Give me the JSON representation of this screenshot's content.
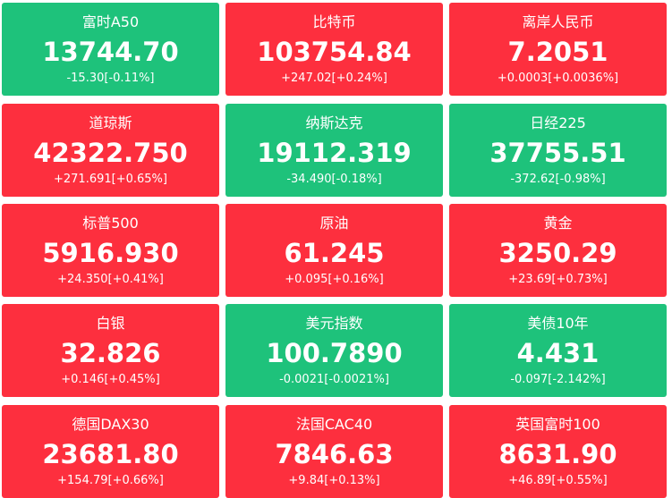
{
  "tiles": [
    {
      "name": "富时A50",
      "price": "13744.70",
      "change": "-15.30[-0.11%]",
      "color": "#1ec27b"
    },
    {
      "name": "比特币",
      "price": "103754.84",
      "change": "+247.02[+0.24%]",
      "color": "#fd2f3e"
    },
    {
      "name": "离岸人民币",
      "price": "7.2051",
      "change": "+0.0003[+0.0036%]",
      "color": "#fd2f3e"
    },
    {
      "name": "道琼斯",
      "price": "42322.750",
      "change": "+271.691[+0.65%]",
      "color": "#fd2f3e"
    },
    {
      "name": "纳斯达克",
      "price": "19112.319",
      "change": "-34.490[-0.18%]",
      "color": "#1ec27b"
    },
    {
      "name": "日经225",
      "price": "37755.51",
      "change": "-372.62[-0.98%]",
      "color": "#1ec27b"
    },
    {
      "name": "标普500",
      "price": "5916.930",
      "change": "+24.350[+0.41%]",
      "color": "#fd2f3e"
    },
    {
      "name": "原油",
      "price": "61.245",
      "change": "+0.095[+0.16%]",
      "color": "#fd2f3e"
    },
    {
      "name": "黄金",
      "price": "3250.29",
      "change": "+23.69[+0.73%]",
      "color": "#fd2f3e"
    },
    {
      "name": "白银",
      "price": "32.826",
      "change": "+0.146[+0.45%]",
      "color": "#fd2f3e"
    },
    {
      "name": "美元指数",
      "price": "100.7890",
      "change": "-0.0021[-0.0021%]",
      "color": "#1ec27b"
    },
    {
      "name": "美债10年",
      "price": "4.431",
      "change": "-0.097[-2.142%]",
      "color": "#1ec27b"
    },
    {
      "name": "德国DAX30",
      "price": "23681.80",
      "change": "+154.79[+0.66%]",
      "color": "#fd2f3e"
    },
    {
      "name": "法国CAC40",
      "price": "7846.63",
      "change": "+9.84[+0.13%]",
      "color": "#fd2f3e"
    },
    {
      "name": "英国富时100",
      "price": "8631.90",
      "change": "+46.89[+0.55%]",
      "color": "#fd2f3e"
    }
  ]
}
